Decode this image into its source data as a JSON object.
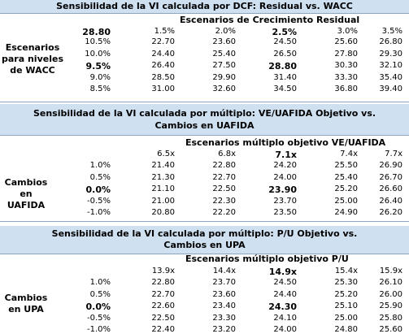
{
  "dcf": {
    "title": "Sensibilidad de la VI calculada por DCF: Residual vs. WACC",
    "col_header": "Escenarios de Crecimiento Residual",
    "corner": "28.80",
    "row_label": "Escenarios para niveles de WACC",
    "cols": [
      "1.5%",
      "2.0%",
      "2.5%",
      "3.0%",
      "3.5%"
    ],
    "rows": [
      {
        "label": "10.5%",
        "values": [
          "22.70",
          "23.60",
          "24.50",
          "25.60",
          "26.80"
        ]
      },
      {
        "label": "10.0%",
        "values": [
          "24.40",
          "25.40",
          "26.50",
          "27.80",
          "29.30"
        ]
      },
      {
        "label": "9.5%",
        "values": [
          "26.40",
          "27.50",
          "28.80",
          "30.30",
          "32.10"
        ]
      },
      {
        "label": "9.0%",
        "values": [
          "28.50",
          "29.90",
          "31.40",
          "33.30",
          "35.40"
        ]
      },
      {
        "label": "8.5%",
        "values": [
          "31.00",
          "32.60",
          "34.50",
          "36.80",
          "39.40"
        ]
      }
    ]
  },
  "ev": {
    "title": "Sensibilidad de la VI calculada por múltiplo: VE/UAFIDA Objetivo vs. Cambios en UAFIDA",
    "col_header": "Escenarios múltiplo objetivo VE/UAFIDA",
    "row_label": "Cambios en UAFIDA",
    "cols": [
      "6.5x",
      "6.8x",
      "7.1x",
      "7.4x",
      "7.7x"
    ],
    "rows": [
      {
        "label": "1.0%",
        "values": [
          "21.40",
          "22.80",
          "24.20",
          "25.50",
          "26.90"
        ]
      },
      {
        "label": "0.5%",
        "values": [
          "21.30",
          "22.70",
          "24.00",
          "25.40",
          "26.70"
        ]
      },
      {
        "label": "0.0%",
        "values": [
          "21.10",
          "22.50",
          "23.90",
          "25.20",
          "26.60"
        ]
      },
      {
        "label": "-0.5%",
        "values": [
          "21.00",
          "22.30",
          "23.70",
          "25.00",
          "26.40"
        ]
      },
      {
        "label": "-1.0%",
        "values": [
          "20.80",
          "22.20",
          "23.50",
          "24.90",
          "26.20"
        ]
      }
    ]
  },
  "pe": {
    "title": "Sensibilidad de la VI calculada por múltiplo: P/U Objetivo vs. Cambios en UPA",
    "col_header": "Escenarios múltiplo objetivo P/U",
    "row_label": "Cambios en UPA",
    "cols": [
      "13.9x",
      "14.4x",
      "14.9x",
      "15.4x",
      "15.9x"
    ],
    "rows": [
      {
        "label": "1.0%",
        "values": [
          "22.80",
          "23.70",
          "24.50",
          "25.30",
          "26.10"
        ]
      },
      {
        "label": "0.5%",
        "values": [
          "22.70",
          "23.60",
          "24.40",
          "25.20",
          "26.00"
        ]
      },
      {
        "label": "0.0%",
        "values": [
          "22.60",
          "23.40",
          "24.30",
          "25.10",
          "25.90"
        ]
      },
      {
        "label": "-0.5%",
        "values": [
          "22.50",
          "23.30",
          "24.10",
          "25.00",
          "25.80"
        ]
      },
      {
        "label": "-1.0%",
        "values": [
          "22.40",
          "23.20",
          "24.00",
          "24.80",
          "25.60"
        ]
      }
    ]
  }
}
